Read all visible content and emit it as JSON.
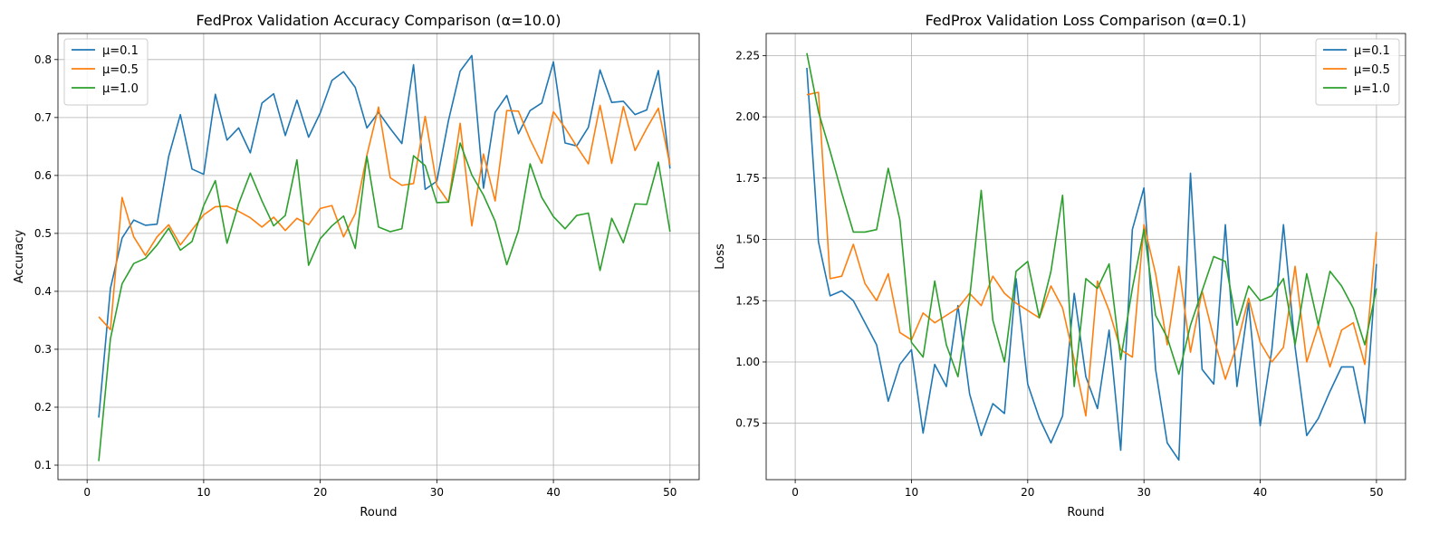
{
  "colors": {
    "mu01": "#1f77b4",
    "mu05": "#ff7f0e",
    "mu10": "#2ca02c"
  },
  "chart_data": [
    {
      "type": "line",
      "title": "FedProx Validation Accuracy Comparison (α=10.0)",
      "xlabel": "Round",
      "ylabel": "Accuracy",
      "grid": true,
      "legend_position": "top-left",
      "xlim": [
        -2.5,
        52.5
      ],
      "ylim": [
        0.075,
        0.845
      ],
      "xticks": [
        0,
        10,
        20,
        30,
        40,
        50
      ],
      "yticks": [
        0.1,
        0.2,
        0.3,
        0.4,
        0.5,
        0.6,
        0.7,
        0.8
      ],
      "ytick_labels": [
        "0.1",
        "0.2",
        "0.3",
        "0.4",
        "0.5",
        "0.6",
        "0.7",
        "0.8"
      ],
      "x": [
        1,
        2,
        3,
        4,
        5,
        6,
        7,
        8,
        9,
        10,
        11,
        12,
        13,
        14,
        15,
        16,
        17,
        18,
        19,
        20,
        21,
        22,
        23,
        24,
        25,
        26,
        27,
        28,
        29,
        30,
        31,
        32,
        33,
        34,
        35,
        36,
        37,
        38,
        39,
        40,
        41,
        42,
        43,
        44,
        45,
        46,
        47,
        48,
        49,
        50
      ],
      "series": [
        {
          "name": "μ=0.1",
          "color": "#1f77b4",
          "values": [
            0.182,
            0.405,
            0.492,
            0.523,
            0.514,
            0.516,
            0.633,
            0.705,
            0.611,
            0.602,
            0.74,
            0.661,
            0.682,
            0.639,
            0.725,
            0.741,
            0.669,
            0.73,
            0.666,
            0.708,
            0.764,
            0.779,
            0.752,
            0.682,
            0.709,
            0.681,
            0.655,
            0.791,
            0.576,
            0.59,
            0.695,
            0.78,
            0.807,
            0.578,
            0.709,
            0.738,
            0.672,
            0.712,
            0.725,
            0.796,
            0.656,
            0.651,
            0.683,
            0.782,
            0.726,
            0.728,
            0.705,
            0.713,
            0.781,
            0.612
          ]
        },
        {
          "name": "μ=0.5",
          "color": "#ff7f0e",
          "values": [
            0.356,
            0.334,
            0.562,
            0.494,
            0.462,
            0.494,
            0.515,
            0.48,
            0.506,
            0.532,
            0.546,
            0.547,
            0.538,
            0.527,
            0.511,
            0.528,
            0.505,
            0.526,
            0.515,
            0.543,
            0.548,
            0.494,
            0.534,
            0.635,
            0.718,
            0.596,
            0.583,
            0.586,
            0.702,
            0.583,
            0.554,
            0.69,
            0.513,
            0.637,
            0.556,
            0.712,
            0.711,
            0.662,
            0.621,
            0.71,
            0.682,
            0.65,
            0.62,
            0.721,
            0.621,
            0.719,
            0.643,
            0.681,
            0.716,
            0.618
          ]
        },
        {
          "name": "μ=1.0",
          "color": "#2ca02c",
          "values": [
            0.107,
            0.318,
            0.413,
            0.448,
            0.457,
            0.48,
            0.509,
            0.471,
            0.486,
            0.548,
            0.591,
            0.483,
            0.551,
            0.604,
            0.556,
            0.513,
            0.531,
            0.627,
            0.445,
            0.491,
            0.513,
            0.53,
            0.474,
            0.633,
            0.511,
            0.503,
            0.508,
            0.634,
            0.617,
            0.553,
            0.554,
            0.656,
            0.601,
            0.566,
            0.521,
            0.446,
            0.505,
            0.62,
            0.562,
            0.529,
            0.508,
            0.531,
            0.535,
            0.436,
            0.526,
            0.484,
            0.551,
            0.55,
            0.623,
            0.503
          ]
        }
      ]
    },
    {
      "type": "line",
      "title": "FedProx Validation Loss Comparison (α=0.1)",
      "xlabel": "Round",
      "ylabel": "Loss",
      "grid": true,
      "legend_position": "top-right",
      "xlim": [
        -2.5,
        52.5
      ],
      "ylim": [
        0.52,
        2.34
      ],
      "xticks": [
        0,
        10,
        20,
        30,
        40,
        50
      ],
      "yticks": [
        0.75,
        1.0,
        1.25,
        1.5,
        1.75,
        2.0,
        2.25
      ],
      "ytick_labels": [
        "0.75",
        "1.00",
        "1.25",
        "1.50",
        "1.75",
        "2.00",
        "2.25"
      ],
      "x": [
        1,
        2,
        3,
        4,
        5,
        6,
        7,
        8,
        9,
        10,
        11,
        12,
        13,
        14,
        15,
        16,
        17,
        18,
        19,
        20,
        21,
        22,
        23,
        24,
        25,
        26,
        27,
        28,
        29,
        30,
        31,
        32,
        33,
        34,
        35,
        36,
        37,
        38,
        39,
        40,
        41,
        42,
        43,
        44,
        45,
        46,
        47,
        48,
        49,
        50
      ],
      "series": [
        {
          "name": "μ=0.1",
          "color": "#1f77b4",
          "values": [
            2.2,
            1.49,
            1.27,
            1.29,
            1.25,
            1.16,
            1.07,
            0.84,
            0.99,
            1.05,
            0.71,
            0.99,
            0.9,
            1.23,
            0.87,
            0.7,
            0.83,
            0.79,
            1.34,
            0.91,
            0.77,
            0.67,
            0.78,
            1.28,
            0.94,
            0.81,
            1.13,
            0.64,
            1.54,
            1.71,
            0.97,
            0.67,
            0.6,
            1.77,
            0.97,
            0.91,
            1.56,
            0.9,
            1.24,
            0.74,
            1.05,
            1.56,
            1.06,
            0.7,
            0.77,
            0.88,
            0.98,
            0.98,
            0.75,
            1.4
          ]
        },
        {
          "name": "μ=0.5",
          "color": "#ff7f0e",
          "values": [
            2.09,
            2.1,
            1.34,
            1.35,
            1.48,
            1.32,
            1.25,
            1.36,
            1.12,
            1.09,
            1.2,
            1.16,
            1.19,
            1.22,
            1.28,
            1.23,
            1.35,
            1.28,
            1.24,
            1.21,
            1.18,
            1.31,
            1.22,
            1.01,
            0.78,
            1.33,
            1.21,
            1.05,
            1.02,
            1.56,
            1.36,
            1.07,
            1.39,
            1.04,
            1.29,
            1.1,
            0.93,
            1.07,
            1.26,
            1.08,
            1.0,
            1.06,
            1.39,
            1.0,
            1.15,
            0.98,
            1.13,
            1.16,
            0.99,
            1.53
          ]
        },
        {
          "name": "μ=1.0",
          "color": "#2ca02c",
          "values": [
            2.26,
            2.02,
            1.86,
            1.69,
            1.53,
            1.53,
            1.54,
            1.79,
            1.58,
            1.08,
            1.02,
            1.33,
            1.07,
            0.94,
            1.26,
            1.7,
            1.17,
            1.0,
            1.37,
            1.41,
            1.18,
            1.37,
            1.68,
            0.9,
            1.34,
            1.3,
            1.4,
            1.01,
            1.3,
            1.54,
            1.19,
            1.1,
            0.95,
            1.15,
            1.29,
            1.43,
            1.41,
            1.15,
            1.31,
            1.25,
            1.27,
            1.34,
            1.07,
            1.36,
            1.15,
            1.37,
            1.31,
            1.22,
            1.07,
            1.3
          ]
        }
      ]
    }
  ]
}
